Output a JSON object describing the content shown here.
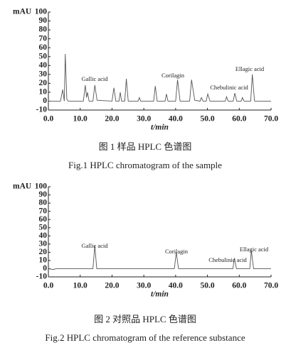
{
  "chart_data": [
    {
      "type": "line",
      "ylabel": "mAU",
      "xlabel": "t/min",
      "caption_cn": "图 1   样品 HPLC 色谱图",
      "caption_en": "Fig.1    HPLC chromatogram of the sample",
      "annotations": [
        "Gallic acid",
        "Corilagin",
        "Chebulinic acid",
        "Ellagic acid"
      ],
      "xlim": [
        0,
        70
      ],
      "ylim": [
        -10,
        100
      ],
      "xticks": [
        {
          "value": 0,
          "label": "0.0"
        },
        {
          "value": 10,
          "label": "10.0"
        },
        {
          "value": 20,
          "label": "20.0"
        },
        {
          "value": 30,
          "label": "30.0"
        },
        {
          "value": 40,
          "label": "40.0"
        },
        {
          "value": 50,
          "label": "50.0"
        },
        {
          "value": 60,
          "label": "60.0"
        },
        {
          "value": 70,
          "label": "70.0"
        }
      ],
      "yticks": [
        -10,
        0,
        10,
        20,
        30,
        40,
        50,
        60,
        70,
        80,
        90,
        100
      ],
      "series": [
        {
          "color": "#555555",
          "x": [
            0,
            3.8,
            4.5,
            5.0,
            5.3,
            5.8,
            6.3,
            11.0,
            11.6,
            12.0,
            12.3,
            12.8,
            14.0,
            14.6,
            15.3,
            20.0,
            20.6,
            21.2,
            22.2,
            22.6,
            23.0,
            24.0,
            24.5,
            25.1,
            28.2,
            28.6,
            29.0,
            33.1,
            33.6,
            34.2,
            36.7,
            37.1,
            37.6,
            40.0,
            40.6,
            41.4,
            44.4,
            45.0,
            46.0,
            47.7,
            48.1,
            48.6,
            49.6,
            50.1,
            50.8,
            55.6,
            56.0,
            56.5,
            58.1,
            58.6,
            59.2,
            60.6,
            61.0,
            61.5,
            63.6,
            64.1,
            64.8,
            70.0
          ],
          "values": [
            0,
            0,
            13,
            0,
            53,
            2,
            0,
            0,
            18,
            4,
            10,
            0,
            0,
            18,
            1,
            0,
            15,
            0,
            0,
            10,
            0,
            0,
            25,
            0,
            0,
            4,
            0,
            0,
            17,
            0,
            0,
            8,
            0,
            0,
            24,
            0,
            0,
            24,
            1,
            0,
            4,
            0,
            0,
            8,
            0,
            0,
            5,
            0,
            0,
            9,
            0,
            0,
            4,
            0,
            0,
            30,
            0,
            0
          ]
        }
      ]
    },
    {
      "type": "line",
      "ylabel": "mAU",
      "xlabel": "t/min",
      "caption_cn": "图 2   对照品 HPLC 色谱图",
      "caption_en": "Fig.2    HPLC chromatogram of the reference substance",
      "annotations": [
        "Gallic acid",
        "Corilagin",
        "Chebulinic acid",
        "Ellagic acid"
      ],
      "xlim": [
        0,
        70
      ],
      "ylim": [
        -10,
        100
      ],
      "xticks": [
        {
          "value": 0,
          "label": "0.0"
        },
        {
          "value": 10,
          "label": "10.0"
        },
        {
          "value": 20,
          "label": "20.0"
        },
        {
          "value": 30,
          "label": "30.0"
        },
        {
          "value": 40,
          "label": "40.0"
        },
        {
          "value": 50,
          "label": "50.0"
        },
        {
          "value": 60,
          "label": "60.0"
        },
        {
          "value": 70,
          "label": "70.0"
        }
      ],
      "yticks": [
        -10,
        0,
        10,
        20,
        30,
        40,
        50,
        60,
        70,
        80,
        90,
        100
      ],
      "series": [
        {
          "color": "#555555",
          "x": [
            0,
            1.5,
            2.5,
            14.0,
            14.6,
            15.2,
            39.6,
            40.2,
            40.9,
            58.0,
            58.5,
            59.1,
            63.3,
            63.8,
            64.5,
            70.0
          ],
          "values": [
            0,
            -1,
            0,
            0,
            28,
            0,
            0,
            20,
            0,
            0,
            13,
            0,
            0,
            22,
            0,
            0
          ]
        }
      ]
    }
  ]
}
